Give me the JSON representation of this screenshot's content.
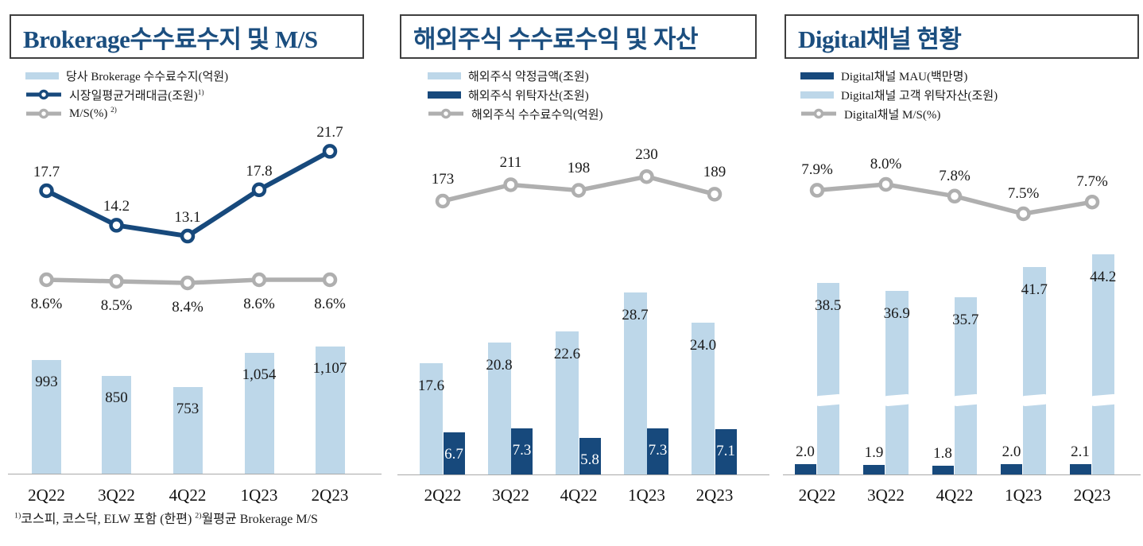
{
  "colors": {
    "navy": "#17497c",
    "light_blue": "#bdd7e9",
    "gray": "#afafaf",
    "title_navy": "#1b4e7f",
    "text": "#1a1a1a"
  },
  "chart_data": [
    {
      "type": "combo",
      "title": "Brokerage수수료수지 및 M/S",
      "categories": [
        "2Q22",
        "3Q22",
        "4Q22",
        "1Q23",
        "2Q23"
      ],
      "series": [
        {
          "name": "당사 Brokerage 수수료수지(억원)",
          "type": "bar",
          "color": "light_blue",
          "values": [
            993,
            850,
            753,
            1054,
            1107
          ],
          "labels": [
            "993",
            "850",
            "753",
            "1,054",
            "1,107"
          ]
        },
        {
          "name": "시장일평균거래대금(조원)",
          "sup": "1)",
          "type": "line",
          "color": "navy",
          "values": [
            17.7,
            14.2,
            13.1,
            17.8,
            21.7
          ],
          "labels": [
            "17.7",
            "14.2",
            "13.1",
            "17.8",
            "21.7"
          ]
        },
        {
          "name": "M/S(%) ",
          "sup": "2)",
          "type": "line",
          "color": "gray",
          "values": [
            8.6,
            8.5,
            8.4,
            8.6,
            8.6
          ],
          "labels": [
            "8.6%",
            "8.5%",
            "8.4%",
            "8.6%",
            "8.6%"
          ]
        }
      ],
      "footnote_parts": [
        {
          "sup": "1)",
          "text": "코스피, 코스닥, ELW 포함 (한편) "
        },
        {
          "sup": "2)",
          "text": "월평균 Brokerage M/S"
        }
      ]
    },
    {
      "type": "combo",
      "title": "해외주식 수수료수익 및 자산",
      "categories": [
        "2Q22",
        "3Q22",
        "4Q22",
        "1Q23",
        "2Q23"
      ],
      "series": [
        {
          "name": "해외주식 약정금액(조원)",
          "type": "bar",
          "color": "light_blue",
          "values": [
            17.6,
            20.8,
            22.6,
            28.7,
            24.0
          ],
          "labels": [
            "17.6",
            "20.8",
            "22.6",
            "28.7",
            "24.0"
          ]
        },
        {
          "name": "해외주식 위탁자산(조원)",
          "type": "bar",
          "color": "navy",
          "values": [
            6.7,
            7.3,
            5.8,
            7.3,
            7.1
          ],
          "labels": [
            "6.7",
            "7.3",
            "5.8",
            "7.3",
            "7.1"
          ]
        },
        {
          "name": "해외주식 수수료수익(억원)",
          "type": "line",
          "color": "gray",
          "values": [
            173,
            211,
            198,
            230,
            189
          ],
          "labels": [
            "173",
            "211",
            "198",
            "230",
            "189"
          ]
        }
      ]
    },
    {
      "type": "combo",
      "title": "Digital채널 현황",
      "categories": [
        "2Q22",
        "3Q22",
        "4Q22",
        "1Q23",
        "2Q23"
      ],
      "series": [
        {
          "name": "Digital채널 MAU(백만명)",
          "type": "bar",
          "color": "navy",
          "values": [
            2.0,
            1.9,
            1.8,
            2.0,
            2.1
          ],
          "labels": [
            "2.0",
            "1.9",
            "1.8",
            "2.0",
            "2.1"
          ]
        },
        {
          "name": "Digital채널 고객 위탁자산(조원)",
          "type": "bar",
          "color": "light_blue",
          "axis_break": true,
          "values": [
            38.5,
            36.9,
            35.7,
            41.7,
            44.2
          ],
          "labels": [
            "38.5",
            "36.9",
            "35.7",
            "41.7",
            "44.2"
          ]
        },
        {
          "name": "Digital채널 M/S(%)",
          "type": "line",
          "color": "gray",
          "values": [
            7.9,
            8.0,
            7.8,
            7.5,
            7.7
          ],
          "labels": [
            "7.9%",
            "8.0%",
            "7.8%",
            "7.5%",
            "7.7%"
          ]
        }
      ]
    }
  ]
}
